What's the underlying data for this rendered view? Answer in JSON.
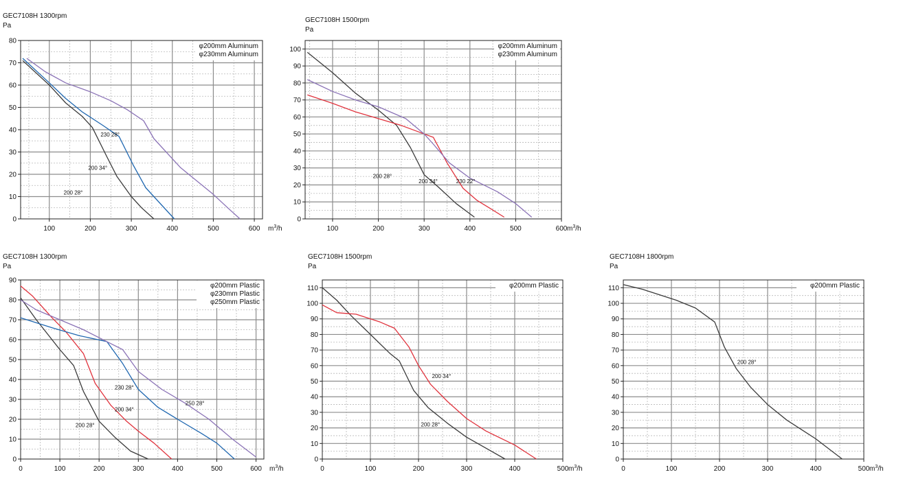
{
  "colors": {
    "black": "#3a3a3a",
    "blue": "#1f67b0",
    "purple": "#8a72b6",
    "red": "#e0323c",
    "grid": "#8c8c8c",
    "minor_grid": "#b8b8b8"
  },
  "chart_data": [
    {
      "type": "line",
      "title": "GEC7108H 1300rpm",
      "ylabel": "Pa",
      "xunit": "h",
      "xlim": [
        30,
        620
      ],
      "ylim": [
        0,
        80
      ],
      "xticks": [
        100,
        200,
        300,
        400,
        500,
        600
      ],
      "yticks": [
        0,
        10,
        20,
        30,
        40,
        50,
        60,
        70,
        80
      ],
      "legend": [
        "φ200mm Aluminum",
        "φ230mm Aluminum"
      ],
      "grid": true,
      "series": [
        {
          "name": "200 28°",
          "color": "black",
          "label_at": [
            135,
            11
          ],
          "points": [
            [
              35,
              71
            ],
            [
              100,
              60
            ],
            [
              140,
              52
            ],
            [
              180,
              46
            ],
            [
              205,
              41
            ],
            [
              240,
              28
            ],
            [
              265,
              19
            ],
            [
              300,
              10
            ],
            [
              325,
              5
            ],
            [
              355,
              0
            ]
          ]
        },
        {
          "name": "200 34°",
          "color": "blue",
          "label_at": [
            195,
            22
          ],
          "points": [
            [
              35,
              72
            ],
            [
              100,
              61
            ],
            [
              140,
              54
            ],
            [
              180,
              48
            ],
            [
              230,
              42
            ],
            [
              270,
              37
            ],
            [
              305,
              24
            ],
            [
              335,
              14
            ],
            [
              375,
              6
            ],
            [
              405,
              0
            ]
          ]
        },
        {
          "name": "230 28°",
          "color": "purple",
          "label_at": [
            225,
            37
          ],
          "points": [
            [
              45,
              72
            ],
            [
              90,
              66
            ],
            [
              140,
              61
            ],
            [
              200,
              57
            ],
            [
              250,
              53
            ],
            [
              290,
              49
            ],
            [
              330,
              44
            ],
            [
              355,
              36
            ],
            [
              420,
              23
            ],
            [
              460,
              17
            ],
            [
              500,
              11
            ],
            [
              535,
              5
            ],
            [
              565,
              0
            ]
          ]
        }
      ]
    },
    {
      "type": "line",
      "title": "GEC7108H 1500rpm",
      "ylabel": "Pa",
      "xunit": "h",
      "xlim": [
        40,
        600
      ],
      "ylim": [
        0,
        105
      ],
      "xticks": [
        100,
        200,
        300,
        400,
        500,
        600
      ],
      "yticks": [
        0,
        10,
        20,
        30,
        40,
        50,
        60,
        70,
        80,
        90,
        100
      ],
      "legend": [
        "φ200mm Aluminum",
        "φ230mm Aluminum"
      ],
      "grid": true,
      "series": [
        {
          "name": "200 28°",
          "color": "black",
          "label_at": [
            188,
            24
          ],
          "points": [
            [
              45,
              98
            ],
            [
              100,
              86
            ],
            [
              150,
              74
            ],
            [
              200,
              64
            ],
            [
              240,
              55
            ],
            [
              270,
              42
            ],
            [
              300,
              26
            ],
            [
              330,
              19
            ],
            [
              370,
              9
            ],
            [
              410,
              1
            ]
          ]
        },
        {
          "name": "200 34°",
          "color": "red",
          "label_at": [
            288,
            21
          ],
          "points": [
            [
              45,
              73
            ],
            [
              100,
              68
            ],
            [
              150,
              63
            ],
            [
              200,
              59
            ],
            [
              250,
              55
            ],
            [
              300,
              50
            ],
            [
              320,
              48
            ],
            [
              350,
              33
            ],
            [
              385,
              18
            ],
            [
              415,
              11
            ],
            [
              445,
              6
            ],
            [
              475,
              1
            ]
          ]
        },
        {
          "name": "230 22°",
          "color": "purple",
          "label_at": [
            370,
            21
          ],
          "points": [
            [
              45,
              82
            ],
            [
              100,
              75
            ],
            [
              150,
              70
            ],
            [
              200,
              66
            ],
            [
              260,
              59
            ],
            [
              300,
              50
            ],
            [
              320,
              44
            ],
            [
              355,
              33
            ],
            [
              400,
              24
            ],
            [
              460,
              16
            ],
            [
              500,
              9
            ],
            [
              535,
              1
            ]
          ]
        }
      ]
    },
    {
      "type": "line",
      "title": "GEC7108H 1300rpm",
      "ylabel": "Pa",
      "xunit": "h",
      "xlim": [
        0,
        620
      ],
      "ylim": [
        0,
        90
      ],
      "xticks": [
        0,
        100,
        200,
        300,
        400,
        500,
        600
      ],
      "yticks": [
        0,
        10,
        20,
        30,
        40,
        50,
        60,
        70,
        80,
        90
      ],
      "legend": [
        "φ200mm Plastic",
        "φ230mm Plastic",
        "φ250mm Plastic"
      ],
      "grid": true,
      "series": [
        {
          "name": "200 28°",
          "color": "black",
          "label_at": [
            140,
            16
          ],
          "points": [
            [
              0,
              81
            ],
            [
              40,
              70
            ],
            [
              100,
              55
            ],
            [
              135,
              47
            ],
            [
              160,
              34
            ],
            [
              200,
              19
            ],
            [
              240,
              11
            ],
            [
              280,
              4
            ],
            [
              325,
              0
            ]
          ]
        },
        {
          "name": "200 34°",
          "color": "red",
          "label_at": [
            240,
            24
          ],
          "points": [
            [
              0,
              87
            ],
            [
              30,
              82
            ],
            [
              80,
              71
            ],
            [
              115,
              64
            ],
            [
              160,
              53
            ],
            [
              190,
              38
            ],
            [
              230,
              27
            ],
            [
              270,
              19
            ],
            [
              300,
              14
            ],
            [
              340,
              8
            ],
            [
              385,
              0
            ]
          ]
        },
        {
          "name": "230 28°",
          "color": "blue",
          "label_at": [
            240,
            35
          ],
          "points": [
            [
              0,
              71
            ],
            [
              80,
              66
            ],
            [
              150,
              62
            ],
            [
              220,
              59
            ],
            [
              260,
              48
            ],
            [
              300,
              35
            ],
            [
              350,
              26
            ],
            [
              400,
              20
            ],
            [
              460,
              13
            ],
            [
              500,
              8
            ],
            [
              545,
              0
            ]
          ]
        },
        {
          "name": "250 28°",
          "color": "purple",
          "label_at": [
            420,
            27
          ],
          "points": [
            [
              0,
              80
            ],
            [
              40,
              75
            ],
            [
              100,
              70
            ],
            [
              160,
              65
            ],
            [
              220,
              59
            ],
            [
              260,
              55
            ],
            [
              300,
              44
            ],
            [
              360,
              35
            ],
            [
              420,
              28
            ],
            [
              480,
              20
            ],
            [
              540,
              10
            ],
            [
              600,
              1
            ]
          ]
        }
      ]
    },
    {
      "type": "line",
      "title": "GEC7108H 1500rpm",
      "ylabel": "Pa",
      "xunit": "h",
      "xlim": [
        0,
        500
      ],
      "ylim": [
        0,
        115
      ],
      "xticks": [
        0,
        100,
        200,
        300,
        400,
        500
      ],
      "yticks": [
        0,
        10,
        20,
        30,
        40,
        50,
        60,
        70,
        80,
        90,
        100,
        110
      ],
      "legend": [
        "φ200mm Plastic"
      ],
      "grid": true,
      "series": [
        {
          "name": "200 28°",
          "color": "black",
          "label_at": [
            205,
            21
          ],
          "points": [
            [
              0,
              110
            ],
            [
              30,
              102
            ],
            [
              60,
              92
            ],
            [
              100,
              80
            ],
            [
              140,
              68
            ],
            [
              160,
              63
            ],
            [
              190,
              44
            ],
            [
              220,
              33
            ],
            [
              260,
              23
            ],
            [
              300,
              14
            ],
            [
              340,
              7
            ],
            [
              380,
              0
            ]
          ]
        },
        {
          "name": "200 34°",
          "color": "red",
          "label_at": [
            228,
            52
          ],
          "points": [
            [
              0,
              99
            ],
            [
              30,
              94
            ],
            [
              70,
              93
            ],
            [
              120,
              88
            ],
            [
              150,
              84
            ],
            [
              180,
              72
            ],
            [
              200,
              60
            ],
            [
              225,
              48
            ],
            [
              260,
              37
            ],
            [
              300,
              26
            ],
            [
              340,
              18
            ],
            [
              400,
              9
            ],
            [
              445,
              0
            ]
          ]
        }
      ]
    },
    {
      "type": "line",
      "title": "GEC7108H 1800rpm",
      "ylabel": "Pa",
      "xunit": "h",
      "xlim": [
        0,
        500
      ],
      "ylim": [
        0,
        115
      ],
      "xticks": [
        0,
        100,
        200,
        300,
        400,
        500
      ],
      "yticks": [
        0,
        10,
        20,
        30,
        40,
        50,
        60,
        70,
        80,
        90,
        100,
        110
      ],
      "legend": [
        "φ200mm Plastic"
      ],
      "grid": true,
      "series": [
        {
          "name": "200 28°",
          "color": "black",
          "label_at": [
            237,
            61
          ],
          "points": [
            [
              0,
              112
            ],
            [
              40,
              109
            ],
            [
              110,
              102
            ],
            [
              150,
              97
            ],
            [
              190,
              88
            ],
            [
              210,
              72
            ],
            [
              235,
              58
            ],
            [
              265,
              46
            ],
            [
              300,
              35
            ],
            [
              340,
              25
            ],
            [
              400,
              13
            ],
            [
              455,
              0
            ]
          ]
        }
      ]
    }
  ]
}
